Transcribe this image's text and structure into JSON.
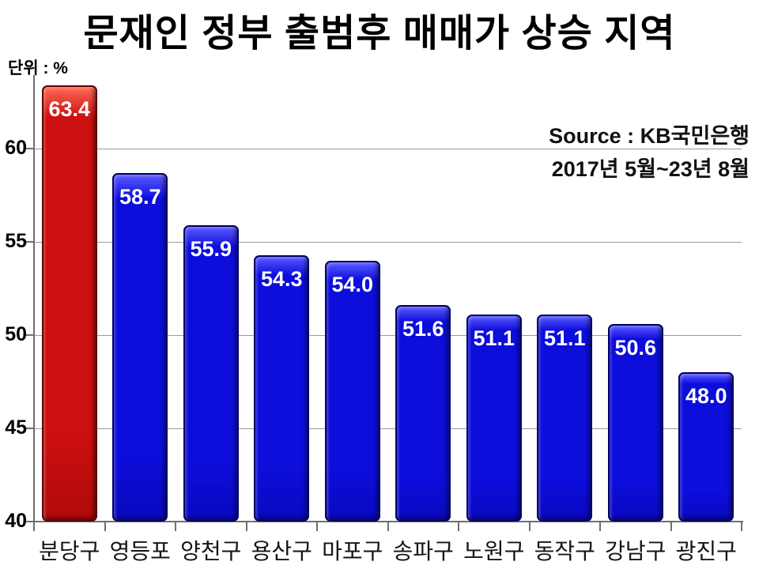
{
  "chart_data": {
    "type": "bar",
    "title": "문재인 정부 출범후 매매가 상승 지역",
    "unit_label": "단위 : %",
    "source_line1": "Source :  KB국민은행",
    "source_line2": "2017년 5월~23년 8월",
    "categories": [
      "분당구",
      "영등포",
      "양천구",
      "용산구",
      "마포구",
      "송파구",
      "노원구",
      "동작구",
      "강남구",
      "광진구"
    ],
    "values": [
      63.4,
      58.7,
      55.9,
      54.3,
      54.0,
      51.6,
      51.1,
      51.1,
      50.6,
      48.0
    ],
    "highlight_index": 0,
    "value_decimals": 1,
    "yticks": [
      40,
      45,
      50,
      55,
      60
    ],
    "ylim": [
      40,
      63.95
    ],
    "grid": "horizontal",
    "legend": "none",
    "colors": {
      "bar_default_fill": "#0d0ddc",
      "bar_default_light": "#5a5aff",
      "bar_default_dark": "#0909c0",
      "bar_default_border": "#000066",
      "bar_highlight_fill": "#cc0f0f",
      "bar_highlight_light": "#ff6a55",
      "bar_highlight_dark": "#b00a0a",
      "bar_highlight_border": "#5e0000",
      "gridline": "#9a9a9a",
      "axis": "#6f6f6f",
      "value_text": "#ffffff",
      "title_text": "#000000"
    }
  }
}
